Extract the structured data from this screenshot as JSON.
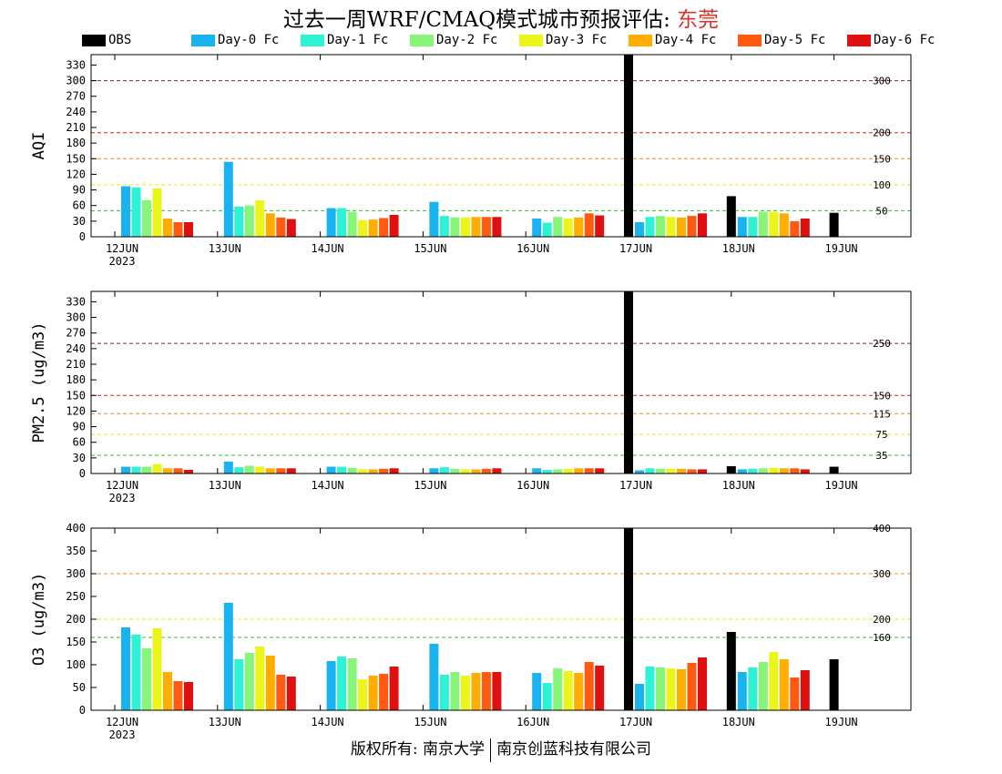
{
  "title": {
    "main": "过去一周WRF/CMAQ模式城市预报评估: ",
    "city": "东莞"
  },
  "footer": {
    "left": "版权所有: 南京大学",
    "right": "南京创蓝科技有限公司"
  },
  "colors": {
    "city": "#e0302a",
    "axis": "#000000"
  },
  "legend": [
    {
      "label": "OBS",
      "color": "#000000"
    },
    {
      "label": "Day-0 Fc",
      "color": "#19b4f0"
    },
    {
      "label": "Day-1 Fc",
      "color": "#2ef2d6"
    },
    {
      "label": "Day-2 Fc",
      "color": "#86f57a"
    },
    {
      "label": "Day-3 Fc",
      "color": "#ecf51a"
    },
    {
      "label": "Day-4 Fc",
      "color": "#ffad00"
    },
    {
      "label": "Day-5 Fc",
      "color": "#ff5a0f"
    },
    {
      "label": "Day-6 Fc",
      "color": "#e01010"
    }
  ],
  "chart_data": [
    {
      "type": "bar",
      "ylabel": "AQI",
      "ylim": [
        0,
        350
      ],
      "yticks": [
        0,
        30,
        60,
        90,
        120,
        150,
        180,
        210,
        240,
        270,
        300,
        330
      ],
      "xticks": [
        "12JUN",
        "13JUN",
        "14JUN",
        "15JUN",
        "16JUN",
        "17JUN",
        "18JUN",
        "19JUN"
      ],
      "year_label": "2023",
      "reference_lines": [
        {
          "value": 50,
          "label": "50",
          "color": "#2ec22e"
        },
        {
          "value": 100,
          "label": "100",
          "color": "#f0e020"
        },
        {
          "value": 150,
          "label": "150",
          "color": "#f08a20"
        },
        {
          "value": 200,
          "label": "200",
          "color": "#e02020"
        },
        {
          "value": 300,
          "label": "300",
          "color": "#902030"
        }
      ],
      "series": [
        {
          "name": "OBS",
          "values": [
            null,
            null,
            null,
            null,
            null,
            350,
            78,
            46
          ]
        },
        {
          "name": "Day-0 Fc",
          "values": [
            97,
            144,
            55,
            67,
            35,
            28,
            38,
            null
          ]
        },
        {
          "name": "Day-1 Fc",
          "values": [
            95,
            58,
            55,
            40,
            27,
            38,
            38,
            null
          ]
        },
        {
          "name": "Day-2 Fc",
          "values": [
            70,
            60,
            48,
            37,
            38,
            40,
            48,
            null
          ]
        },
        {
          "name": "Day-3 Fc",
          "values": [
            93,
            70,
            32,
            37,
            35,
            38,
            48,
            null
          ]
        },
        {
          "name": "Day-4 Fc",
          "values": [
            35,
            45,
            33,
            38,
            37,
            37,
            45,
            null
          ]
        },
        {
          "name": "Day-5 Fc",
          "values": [
            28,
            37,
            36,
            38,
            45,
            40,
            30,
            null
          ]
        },
        {
          "name": "Day-6 Fc",
          "values": [
            28,
            34,
            42,
            38,
            41,
            45,
            35,
            null
          ]
        }
      ]
    },
    {
      "type": "bar",
      "ylabel": "PM2.5 (ug/m3)",
      "ylim": [
        0,
        350
      ],
      "yticks": [
        0,
        30,
        60,
        90,
        120,
        150,
        180,
        210,
        240,
        270,
        300,
        330
      ],
      "xticks": [
        "12JUN",
        "13JUN",
        "14JUN",
        "15JUN",
        "16JUN",
        "17JUN",
        "18JUN",
        "19JUN"
      ],
      "year_label": "2023",
      "reference_lines": [
        {
          "value": 35,
          "label": "35",
          "color": "#2ec22e"
        },
        {
          "value": 75,
          "label": "75",
          "color": "#f0e020"
        },
        {
          "value": 115,
          "label": "115",
          "color": "#f08a20"
        },
        {
          "value": 150,
          "label": "150",
          "color": "#e02020"
        },
        {
          "value": 250,
          "label": "250",
          "color": "#902030"
        }
      ],
      "series": [
        {
          "name": "OBS",
          "values": [
            null,
            null,
            null,
            null,
            null,
            350,
            14,
            13
          ]
        },
        {
          "name": "Day-0 Fc",
          "values": [
            13,
            23,
            13,
            10,
            10,
            6,
            8,
            null
          ]
        },
        {
          "name": "Day-1 Fc",
          "values": [
            13,
            12,
            13,
            12,
            7,
            10,
            9,
            null
          ]
        },
        {
          "name": "Day-2 Fc",
          "values": [
            13,
            15,
            11,
            9,
            8,
            9,
            10,
            null
          ]
        },
        {
          "name": "Day-3 Fc",
          "values": [
            18,
            13,
            8,
            8,
            9,
            9,
            11,
            null
          ]
        },
        {
          "name": "Day-4 Fc",
          "values": [
            10,
            10,
            8,
            8,
            10,
            9,
            10,
            null
          ]
        },
        {
          "name": "Day-5 Fc",
          "values": [
            10,
            10,
            9,
            9,
            10,
            8,
            10,
            null
          ]
        },
        {
          "name": "Day-6 Fc",
          "values": [
            7,
            10,
            10,
            10,
            10,
            8,
            8,
            null
          ]
        }
      ]
    },
    {
      "type": "bar",
      "ylabel": "O3 (ug/m3)",
      "ylim": [
        0,
        400
      ],
      "yticks": [
        0,
        50,
        100,
        150,
        200,
        250,
        300,
        350,
        400
      ],
      "xticks": [
        "12JUN",
        "13JUN",
        "14JUN",
        "15JUN",
        "16JUN",
        "17JUN",
        "18JUN",
        "19JUN"
      ],
      "year_label": "2023",
      "reference_lines": [
        {
          "value": 160,
          "label": "160",
          "color": "#2ec22e"
        },
        {
          "value": 200,
          "label": "200",
          "color": "#f0e020"
        },
        {
          "value": 300,
          "label": "300",
          "color": "#f08a20"
        },
        {
          "value": 400,
          "label": "400",
          "color": "#e02020"
        }
      ],
      "series": [
        {
          "name": "OBS",
          "values": [
            null,
            null,
            null,
            null,
            null,
            400,
            172,
            112
          ]
        },
        {
          "name": "Day-0 Fc",
          "values": [
            182,
            236,
            108,
            146,
            82,
            58,
            84,
            null
          ]
        },
        {
          "name": "Day-1 Fc",
          "values": [
            166,
            112,
            118,
            78,
            60,
            96,
            94,
            null
          ]
        },
        {
          "name": "Day-2 Fc",
          "values": [
            136,
            126,
            114,
            84,
            92,
            94,
            106,
            null
          ]
        },
        {
          "name": "Day-3 Fc",
          "values": [
            180,
            140,
            68,
            76,
            86,
            92,
            128,
            null
          ]
        },
        {
          "name": "Day-4 Fc",
          "values": [
            84,
            120,
            76,
            82,
            82,
            90,
            112,
            null
          ]
        },
        {
          "name": "Day-5 Fc",
          "values": [
            64,
            78,
            80,
            84,
            106,
            104,
            72,
            null
          ]
        },
        {
          "name": "Day-6 Fc",
          "values": [
            62,
            74,
            96,
            84,
            98,
            116,
            88,
            null
          ]
        }
      ]
    }
  ]
}
